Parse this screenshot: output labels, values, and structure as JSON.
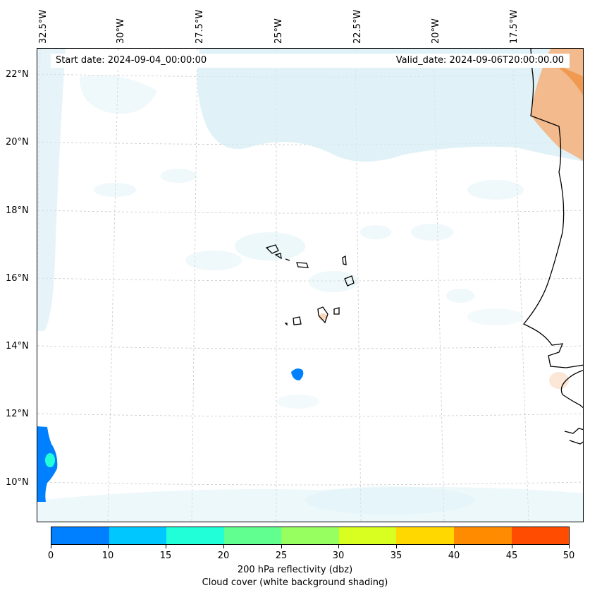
{
  "header": {
    "start_date": "Start date: 2024-09-04_00:00:00",
    "valid_date": "Valid_date: 2024-09-06T20:00:00.00"
  },
  "axes": {
    "lon_labels": [
      "32.5°W",
      "30°W",
      "27.5°W",
      "25°W",
      "22.5°W",
      "20°W",
      "17.5°W"
    ],
    "lat_labels": [
      "22°N",
      "20°N",
      "18°N",
      "16°N",
      "14°N",
      "12°N",
      "10°N"
    ]
  },
  "colorbar": {
    "ticks": [
      "0",
      "10",
      "15",
      "20",
      "25",
      "30",
      "35",
      "40",
      "45",
      "50"
    ],
    "colors": [
      "#0080ff",
      "#00c8ff",
      "#20ffd8",
      "#60ff90",
      "#98ff60",
      "#d8ff20",
      "#ffd800",
      "#ff8c00",
      "#ff4c00"
    ],
    "label_line1": "200 hPa reflectivity (dbz)",
    "label_line2": "Cloud cover (white background shading)"
  },
  "map": {
    "cloud_color": "#d6eef5",
    "land_color": "#f4b07a",
    "echo_colors": [
      "#0080ff",
      "#20ffd8"
    ]
  }
}
